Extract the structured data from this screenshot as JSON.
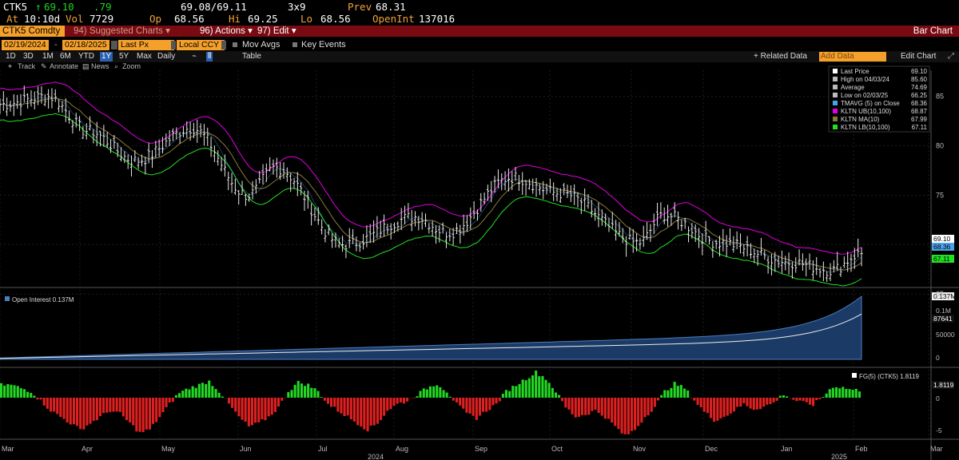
{
  "quote": {
    "ticker": "CTK5",
    "arrow": "↑",
    "last": "69.10",
    "change": ".79",
    "bid_ask": "69.08/69.11",
    "size": "3x9",
    "prev_label": "Prev",
    "prev": "68.31",
    "time_label": "At",
    "time": "10:10d",
    "vol_label": "Vol",
    "vol": "7729",
    "open_label": "Op",
    "open": "68.56",
    "hi_label": "Hi",
    "hi": "69.25",
    "lo_label": "Lo",
    "lo": "68.56",
    "oi_label": "OpenInt",
    "oi": "137016"
  },
  "menubar": {
    "security": "CTK5 Comdty",
    "suggested": "94) Suggested Charts ▾",
    "actions": "96) Actions ▾",
    "edit": "97) Edit ▾",
    "title": "Bar Chart"
  },
  "controls": {
    "start_date": "02/19/2024",
    "end_date": "02/18/2025",
    "field": "Last Px",
    "currency": "Local CCY",
    "mov_avgs": "Mov Avgs",
    "key_events": "Key Events"
  },
  "periods": {
    "items": [
      "1D",
      "3D",
      "1M",
      "6M",
      "YTD",
      "1Y",
      "5Y",
      "Max"
    ],
    "selected": "1Y",
    "frequency": "Daily",
    "table": "Table",
    "related": "+ Related Data",
    "add_data_placeholder": "Add Data",
    "edit_chart": "Edit Chart"
  },
  "tools": {
    "track": "Track",
    "annotate": "Annotate",
    "news": "News",
    "zoom": "Zoom"
  },
  "legend": [
    {
      "label": "Last Price",
      "value": "69.10",
      "color": "#ffffff"
    },
    {
      "label": "High on 04/03/24",
      "value": "85.60",
      "color": "#bbbbbb"
    },
    {
      "label": "Average",
      "value": "74.69",
      "color": "#bbbbbb"
    },
    {
      "label": "Low on 02/03/25",
      "value": "66.25",
      "color": "#bbbbbb"
    },
    {
      "label": "TMAVG (5)  on Close",
      "value": "68.36",
      "color": "#4aa3e8"
    },
    {
      "label": "KLTN UB(10,100)",
      "value": "68.87",
      "color": "#e000e0"
    },
    {
      "label": "KLTN MA(10)",
      "value": "67.99",
      "color": "#8a7a3a"
    },
    {
      "label": "KLTN LB(10,100)",
      "value": "67.11",
      "color": "#22e022"
    }
  ],
  "price_axis": {
    "ticks": [
      "85",
      "80",
      "75",
      "70",
      "65"
    ],
    "labels": [
      {
        "text": "69.10",
        "bg": "#ffffff",
        "fg": "#000000"
      },
      {
        "text": "68.36",
        "bg": "#4aa3e8",
        "fg": "#000000"
      },
      {
        "text": "67.11",
        "bg": "#22e022",
        "fg": "#000000"
      }
    ]
  },
  "oi_panel": {
    "legend": "Open Interest 0.137M",
    "ticks": [
      "0.1M",
      "50000",
      "0"
    ],
    "labels": [
      "0.137M",
      "87641"
    ]
  },
  "fg_panel": {
    "legend": "FG(5) (CTK5) 1.8119",
    "ticks": [
      "0",
      "-5"
    ],
    "label": "1.8119"
  },
  "xaxis": {
    "months": [
      "Mar",
      "Apr",
      "May",
      "Jun",
      "Jul",
      "Aug",
      "Sep",
      "Oct",
      "Nov",
      "Dec",
      "Jan",
      "Feb",
      "Mar"
    ],
    "years": [
      "2024",
      "2025"
    ]
  },
  "chart_data": {
    "type": "bar",
    "title": "Bar Chart",
    "date_range": [
      "02/19/2024",
      "02/18/2025"
    ],
    "ylim": [
      65,
      87
    ],
    "months": [
      "Mar",
      "Apr",
      "May",
      "Jun",
      "Jul",
      "Aug",
      "Sep",
      "Oct",
      "Nov",
      "Dec",
      "Jan",
      "Feb",
      "Mar"
    ],
    "price_anchors": [
      {
        "month": "Feb 2024",
        "close": 84.2
      },
      {
        "month": "Mar 2024",
        "close": 85.0
      },
      {
        "month": "Apr 2024",
        "close": 81.5
      },
      {
        "month": "May 2024",
        "close": 78.5
      },
      {
        "month": "May 2024",
        "close": 81.8
      },
      {
        "month": "Jun 2024",
        "close": 75.0
      },
      {
        "month": "Jul 2024",
        "close": 77.8
      },
      {
        "month": "Aug 2024",
        "close": 70.0
      },
      {
        "month": "Aug 2024",
        "close": 72.8
      },
      {
        "month": "Sep 2024",
        "close": 71.2
      },
      {
        "month": "Sep 2024",
        "close": 76.8
      },
      {
        "month": "Oct 2024",
        "close": 75.2
      },
      {
        "month": "Nov 2024",
        "close": 70.2
      },
      {
        "month": "Nov 2024",
        "close": 73.0
      },
      {
        "month": "Dec 2024",
        "close": 70.2
      },
      {
        "month": "Jan 2025",
        "close": 68.2
      },
      {
        "month": "Feb 2025",
        "close": 67.4
      },
      {
        "month": "Feb 2025",
        "close": 69.1
      }
    ],
    "series": [
      {
        "name": "Last Price",
        "last": 69.1
      },
      {
        "name": "TMAVG (5)  on Close",
        "last": 68.36
      },
      {
        "name": "KLTN UB(10,100)",
        "last": 68.87
      },
      {
        "name": "KLTN MA(10)",
        "last": 67.99
      },
      {
        "name": "KLTN LB(10,100)",
        "last": 67.11
      }
    ],
    "open_interest": {
      "last": 137016,
      "ylim": [
        0,
        140000
      ]
    },
    "fg5": {
      "last": 1.8119,
      "ylim": [
        -7,
        3
      ]
    }
  }
}
